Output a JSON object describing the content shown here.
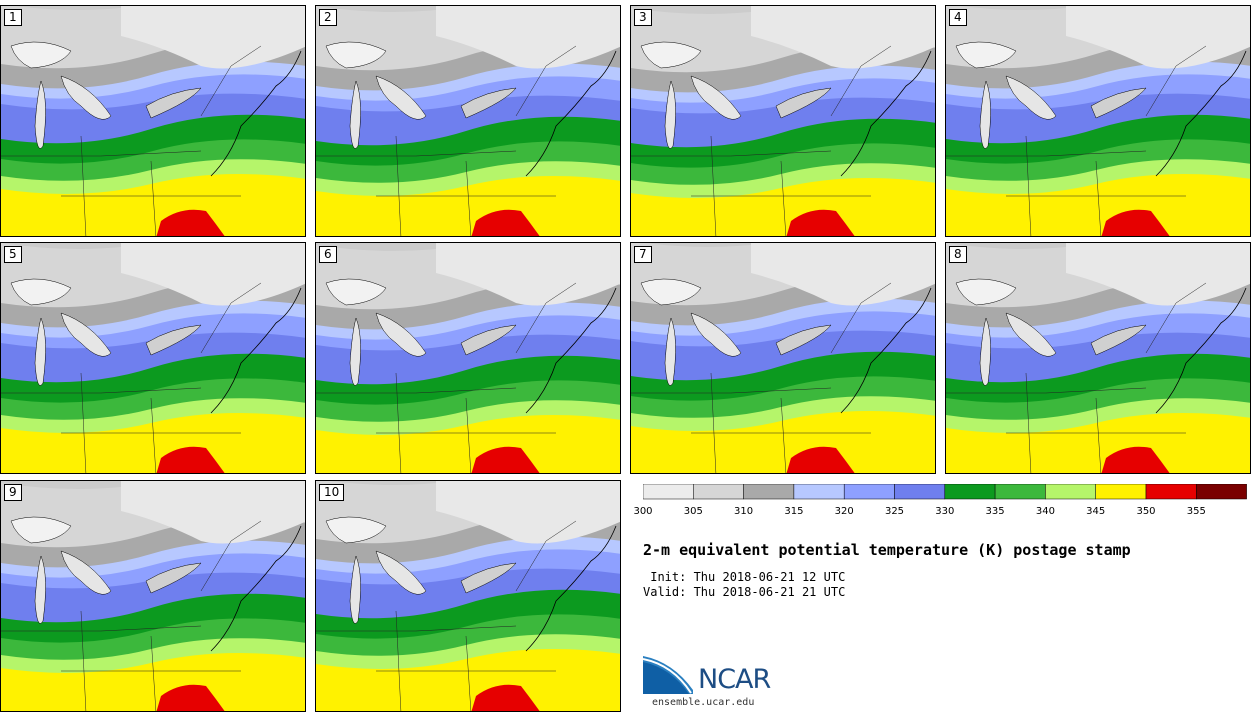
{
  "panels": [
    {
      "label": "1"
    },
    {
      "label": "2"
    },
    {
      "label": "3"
    },
    {
      "label": "4"
    },
    {
      "label": "5"
    },
    {
      "label": "6"
    },
    {
      "label": "7"
    },
    {
      "label": "8"
    },
    {
      "label": "9"
    },
    {
      "label": "10"
    }
  ],
  "colorbar": {
    "ticks": [
      "300",
      "305",
      "310",
      "315",
      "320",
      "325",
      "330",
      "335",
      "340",
      "345",
      "350",
      "355"
    ],
    "colors": [
      "#ececec",
      "#d6d6d6",
      "#a9a9a9",
      "#b7c8ff",
      "#8ea0ff",
      "#6f7fee",
      "#0c9a1f",
      "#3cb83c",
      "#b5f56a",
      "#fff200",
      "#e60000",
      "#7a0000"
    ]
  },
  "title": "2-m equivalent potential temperature (K) postage stamp",
  "init_text": " Init: Thu 2018-06-21 12 UTC",
  "valid_text": "Valid: Thu 2018-06-21 21 UTC",
  "logo_text": "NCAR",
  "url": "ensemble.ucar.edu"
}
